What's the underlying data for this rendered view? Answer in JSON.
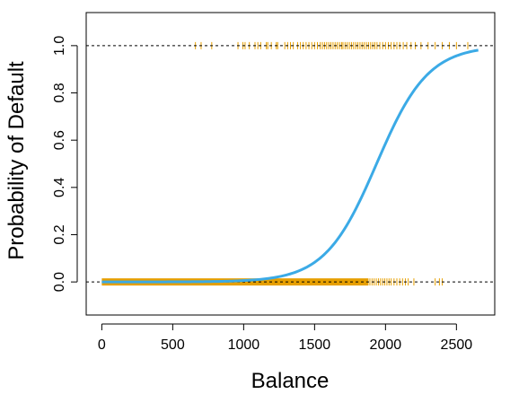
{
  "chart_data": {
    "type": "scatter",
    "title": "",
    "xlabel": "Balance",
    "ylabel": "Probability of Default",
    "xlim": [
      -110,
      2770
    ],
    "ylim": [
      -0.14,
      1.14
    ],
    "xticks": [
      0,
      500,
      1000,
      1500,
      2000,
      2500
    ],
    "yticks": [
      0.0,
      0.2,
      0.4,
      0.6,
      0.8,
      1.0
    ],
    "xtick_labels": [
      "0",
      "500",
      "1000",
      "1500",
      "2000",
      "2500"
    ],
    "ytick_labels": [
      "0.0",
      "0.2",
      "0.4",
      "0.6",
      "0.8",
      "1.0"
    ],
    "reference_lines_y": [
      0,
      1
    ],
    "grid": false,
    "legend": "none",
    "colors": {
      "rug": "#E69F00",
      "curve": "#3BAAE6",
      "axis": "#000000"
    },
    "series": [
      {
        "kind": "logistic-fit",
        "intercept": -10.6513,
        "slope": 0.005499,
        "x_range": [
          0,
          2654
        ]
      },
      {
        "kind": "rug",
        "y": 1,
        "values": [
          660,
          700,
          775,
          960,
          995,
          1010,
          1040,
          1080,
          1100,
          1120,
          1160,
          1170,
          1195,
          1230,
          1240,
          1290,
          1310,
          1330,
          1350,
          1380,
          1400,
          1420,
          1440,
          1460,
          1480,
          1500,
          1520,
          1540,
          1555,
          1570,
          1585,
          1600,
          1615,
          1630,
          1645,
          1660,
          1675,
          1690,
          1700,
          1715,
          1730,
          1745,
          1760,
          1775,
          1790,
          1805,
          1820,
          1835,
          1850,
          1865,
          1880,
          1895,
          1910,
          1925,
          1940,
          1960,
          1980,
          2000,
          2020,
          2040,
          2060,
          2080,
          2100,
          2125,
          2150,
          2180,
          2210,
          2250,
          2300,
          2350,
          2400,
          2450,
          2500,
          2580
        ]
      },
      {
        "kind": "rug-dense",
        "y": 0,
        "range": [
          0,
          1880
        ]
      },
      {
        "kind": "rug",
        "y": 0,
        "values": [
          1890,
          1905,
          1920,
          1935,
          1950,
          1965,
          1980,
          1995,
          2010,
          2025,
          2040,
          2060,
          2080,
          2100,
          2120,
          2140,
          2160,
          2200,
          2350,
          2380,
          2400
        ]
      }
    ]
  }
}
